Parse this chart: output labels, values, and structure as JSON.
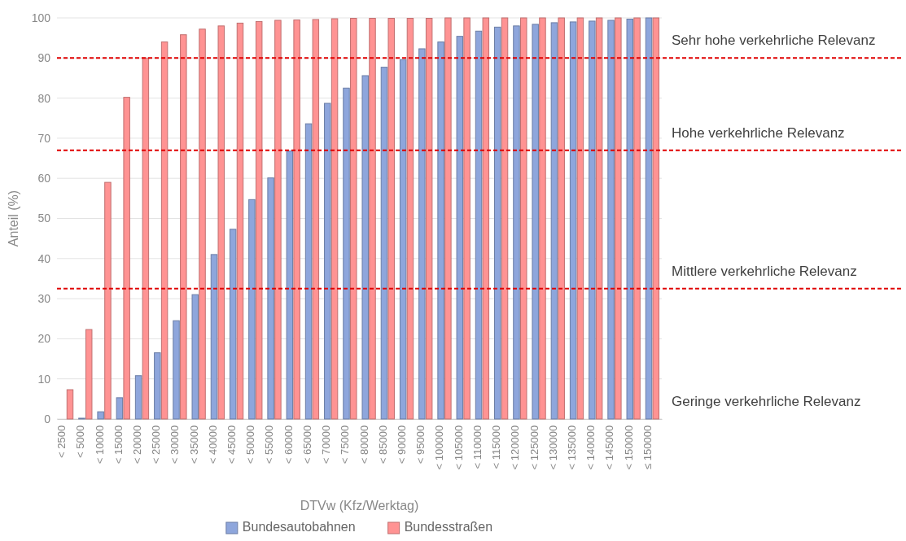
{
  "chart_data": {
    "type": "bar",
    "xlabel": "DTVw (Kfz/Werktag)",
    "ylabel": "Anteil (%)",
    "categories": [
      "< 2500",
      "< 5000",
      "< 10000",
      "< 15000",
      "< 20000",
      "< 25000",
      "< 30000",
      "< 35000",
      "< 40000",
      "< 45000",
      "< 50000",
      "< 55000",
      "< 60000",
      "< 65000",
      "< 70000",
      "< 75000",
      "< 80000",
      "< 85000",
      "< 90000",
      "< 95000",
      "< 100000",
      "< 105000",
      "< 110000",
      "< 115000",
      "< 120000",
      "< 125000",
      "< 130000",
      "< 135000",
      "< 140000",
      "< 145000",
      "< 150000",
      "≤ 150000"
    ],
    "series": [
      {
        "name": "Bundesautobahnen",
        "color": "#8ea6dc",
        "values": [
          0,
          0.2,
          1.8,
          5.3,
          10.8,
          16.5,
          24.5,
          31,
          41,
          47.3,
          54.7,
          60.1,
          66.8,
          73.6,
          78.7,
          82.5,
          85.6,
          87.7,
          89.6,
          92.3,
          94.0,
          95.4,
          96.7,
          97.7,
          98.0,
          98.4,
          98.8,
          99.0,
          99.2,
          99.4,
          99.7,
          100
        ]
      },
      {
        "name": "Bundesstraßen",
        "color": "#ff9393",
        "values": [
          7.3,
          22.3,
          59,
          80.2,
          90,
          94,
          95.8,
          97.2,
          98,
          98.7,
          99.1,
          99.4,
          99.5,
          99.6,
          99.8,
          99.9,
          99.9,
          99.9,
          99.9,
          99.9,
          100,
          100,
          100,
          100,
          100,
          100,
          100,
          100,
          100,
          100,
          100,
          100
        ]
      }
    ],
    "ylim": [
      0,
      100
    ],
    "yticks": [
      0,
      10,
      20,
      30,
      40,
      50,
      60,
      70,
      80,
      90,
      100
    ],
    "grid": "y",
    "legend": "bottom",
    "ref_lines": [
      {
        "axis": "y",
        "value": 90,
        "color": "#e00000",
        "line_style": "dashed"
      },
      {
        "axis": "y",
        "value": 67,
        "color": "#e00000",
        "line_style": "dashed"
      },
      {
        "axis": "y",
        "value": 32.5,
        "color": "#e00000",
        "line_style": "dashed"
      }
    ],
    "annotations": [
      "Sehr hohe verkehrliche Relevanz",
      "Hohe verkehrliche Relevanz",
      "Mittlere verkehrliche Relevanz",
      "Geringe verkehrliche Relevanz"
    ]
  }
}
